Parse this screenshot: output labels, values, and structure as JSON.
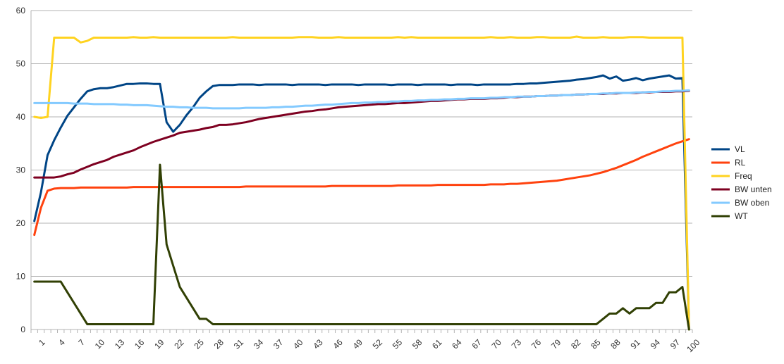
{
  "chart_data": {
    "type": "line",
    "title": "",
    "xlabel": "",
    "ylabel": "",
    "ylim": [
      0,
      60
    ],
    "yticks": [
      0,
      10,
      20,
      30,
      40,
      50,
      60
    ],
    "x": [
      1,
      2,
      3,
      4,
      5,
      6,
      7,
      8,
      9,
      10,
      11,
      12,
      13,
      14,
      15,
      16,
      17,
      18,
      19,
      20,
      21,
      22,
      23,
      24,
      25,
      26,
      27,
      28,
      29,
      30,
      31,
      32,
      33,
      34,
      35,
      36,
      37,
      38,
      39,
      40,
      41,
      42,
      43,
      44,
      45,
      46,
      47,
      48,
      49,
      50,
      51,
      52,
      53,
      54,
      55,
      56,
      57,
      58,
      59,
      60,
      61,
      62,
      63,
      64,
      65,
      66,
      67,
      68,
      69,
      70,
      71,
      72,
      73,
      74,
      75,
      76,
      77,
      78,
      79,
      80,
      81,
      82,
      83,
      84,
      85,
      86,
      87,
      88,
      89,
      90,
      91,
      92,
      93,
      94,
      95,
      96,
      97,
      98,
      99,
      100
    ],
    "xtick_labels": [
      "1",
      "4",
      "7",
      "10",
      "13",
      "16",
      "19",
      "22",
      "25",
      "28",
      "31",
      "34",
      "37",
      "40",
      "43",
      "46",
      "49",
      "52",
      "55",
      "58",
      "61",
      "64",
      "67",
      "70",
      "73",
      "76",
      "79",
      "82",
      "85",
      "88",
      "91",
      "94",
      "97",
      "100"
    ],
    "grid": true,
    "legend_position": "right",
    "series": [
      {
        "name": "VL",
        "color": "#004586",
        "values": [
          20.4,
          25.8,
          32.8,
          35.6,
          38.0,
          40.2,
          41.8,
          43.4,
          44.8,
          45.2,
          45.4,
          45.4,
          45.6,
          45.9,
          46.2,
          46.2,
          46.3,
          46.3,
          46.2,
          46.2,
          39.0,
          37.2,
          38.5,
          40.3,
          41.8,
          43.6,
          44.8,
          45.8,
          46.0,
          46.0,
          46.0,
          46.1,
          46.1,
          46.1,
          46.0,
          46.1,
          46.1,
          46.1,
          46.1,
          46.0,
          46.1,
          46.1,
          46.1,
          46.1,
          46.0,
          46.1,
          46.1,
          46.1,
          46.1,
          46.0,
          46.1,
          46.1,
          46.1,
          46.1,
          46.0,
          46.1,
          46.1,
          46.1,
          46.0,
          46.1,
          46.1,
          46.1,
          46.1,
          46.0,
          46.1,
          46.1,
          46.1,
          46.0,
          46.1,
          46.1,
          46.1,
          46.1,
          46.1,
          46.2,
          46.2,
          46.3,
          46.3,
          46.4,
          46.5,
          46.6,
          46.7,
          46.8,
          47.0,
          47.1,
          47.3,
          47.5,
          47.8,
          47.2,
          47.6,
          46.8,
          47.0,
          47.3,
          46.9,
          47.2,
          47.4,
          47.6,
          47.8,
          47.2,
          47.3,
          0
        ]
      },
      {
        "name": "RL",
        "color": "#ff420e",
        "values": [
          17.8,
          22.9,
          26.1,
          26.5,
          26.6,
          26.6,
          26.6,
          26.7,
          26.7,
          26.7,
          26.7,
          26.7,
          26.7,
          26.7,
          26.7,
          26.8,
          26.8,
          26.8,
          26.8,
          26.8,
          26.8,
          26.8,
          26.8,
          26.8,
          26.8,
          26.8,
          26.8,
          26.8,
          26.8,
          26.8,
          26.8,
          26.8,
          26.9,
          26.9,
          26.9,
          26.9,
          26.9,
          26.9,
          26.9,
          26.9,
          26.9,
          26.9,
          26.9,
          26.9,
          26.9,
          27.0,
          27.0,
          27.0,
          27.0,
          27.0,
          27.0,
          27.0,
          27.0,
          27.0,
          27.0,
          27.1,
          27.1,
          27.1,
          27.1,
          27.1,
          27.1,
          27.2,
          27.2,
          27.2,
          27.2,
          27.2,
          27.2,
          27.2,
          27.2,
          27.3,
          27.3,
          27.3,
          27.4,
          27.4,
          27.5,
          27.6,
          27.7,
          27.8,
          27.9,
          28.0,
          28.2,
          28.4,
          28.6,
          28.8,
          29.0,
          29.3,
          29.6,
          30.0,
          30.4,
          30.9,
          31.4,
          31.9,
          32.5,
          33.0,
          33.5,
          34.0,
          34.5,
          35.0,
          35.4,
          35.8
        ]
      },
      {
        "name": "Freq",
        "color": "#ffd320",
        "values": [
          40.0,
          39.8,
          40.0,
          54.9,
          54.9,
          54.9,
          54.9,
          54.0,
          54.3,
          54.9,
          54.9,
          54.9,
          54.9,
          54.9,
          54.9,
          55.0,
          54.9,
          54.9,
          55.0,
          54.9,
          54.9,
          54.9,
          54.9,
          54.9,
          54.9,
          54.9,
          54.9,
          54.9,
          54.9,
          54.9,
          55.0,
          54.9,
          54.9,
          54.9,
          54.9,
          54.9,
          54.9,
          54.9,
          54.9,
          54.9,
          55.0,
          55.0,
          55.0,
          54.9,
          54.9,
          54.9,
          55.0,
          54.9,
          54.9,
          54.9,
          54.9,
          54.9,
          54.9,
          54.9,
          54.9,
          55.0,
          54.9,
          55.0,
          54.9,
          54.9,
          54.9,
          54.9,
          54.9,
          54.9,
          54.9,
          54.9,
          54.9,
          54.9,
          54.9,
          55.0,
          54.9,
          54.9,
          55.0,
          54.9,
          54.9,
          54.9,
          55.0,
          55.0,
          54.9,
          54.9,
          54.9,
          54.9,
          55.1,
          54.9,
          54.9,
          54.9,
          55.0,
          54.9,
          54.9,
          54.9,
          55.0,
          55.0,
          55.0,
          54.9,
          54.9,
          54.9,
          54.9,
          54.9,
          54.9,
          0
        ]
      },
      {
        "name": "BW unten",
        "color": "#7e0021",
        "values": [
          28.6,
          28.6,
          28.6,
          28.6,
          28.8,
          29.2,
          29.5,
          30.1,
          30.6,
          31.1,
          31.5,
          31.9,
          32.5,
          32.9,
          33.3,
          33.7,
          34.3,
          34.8,
          35.3,
          35.7,
          36.1,
          36.5,
          37.0,
          37.2,
          37.4,
          37.6,
          37.9,
          38.1,
          38.5,
          38.5,
          38.6,
          38.8,
          39.0,
          39.3,
          39.6,
          39.8,
          40.0,
          40.2,
          40.4,
          40.6,
          40.8,
          41.0,
          41.1,
          41.3,
          41.4,
          41.6,
          41.8,
          41.9,
          42.0,
          42.1,
          42.2,
          42.3,
          42.4,
          42.4,
          42.5,
          42.6,
          42.6,
          42.7,
          42.8,
          42.9,
          43.0,
          43.0,
          43.1,
          43.2,
          43.3,
          43.3,
          43.4,
          43.4,
          43.4,
          43.5,
          43.5,
          43.6,
          43.7,
          43.7,
          43.8,
          43.8,
          43.9,
          43.9,
          44.0,
          44.0,
          44.1,
          44.1,
          44.2,
          44.2,
          44.3,
          44.3,
          44.3,
          44.4,
          44.4,
          44.5,
          44.5,
          44.5,
          44.6,
          44.6,
          44.7,
          44.7,
          44.7,
          44.8,
          44.8,
          44.9
        ]
      },
      {
        "name": "BW oben",
        "color": "#83caff",
        "values": [
          42.6,
          42.6,
          42.6,
          42.6,
          42.6,
          42.6,
          42.5,
          42.5,
          42.5,
          42.4,
          42.4,
          42.4,
          42.4,
          42.3,
          42.3,
          42.2,
          42.2,
          42.2,
          42.1,
          42.0,
          41.9,
          41.9,
          41.8,
          41.8,
          41.7,
          41.7,
          41.7,
          41.6,
          41.6,
          41.6,
          41.6,
          41.6,
          41.7,
          41.7,
          41.7,
          41.7,
          41.8,
          41.8,
          41.9,
          41.9,
          42.0,
          42.1,
          42.1,
          42.2,
          42.3,
          42.3,
          42.4,
          42.5,
          42.6,
          42.6,
          42.7,
          42.7,
          42.8,
          42.8,
          42.9,
          42.9,
          43.0,
          43.0,
          43.1,
          43.1,
          43.2,
          43.2,
          43.3,
          43.3,
          43.4,
          43.4,
          43.5,
          43.5,
          43.5,
          43.6,
          43.6,
          43.7,
          43.7,
          43.8,
          43.8,
          43.8,
          43.9,
          43.9,
          44.0,
          44.0,
          44.1,
          44.1,
          44.2,
          44.2,
          44.3,
          44.3,
          44.4,
          44.4,
          44.5,
          44.5,
          44.5,
          44.6,
          44.6,
          44.7,
          44.7,
          44.8,
          44.8,
          44.9,
          44.9,
          45.0
        ]
      },
      {
        "name": "WT",
        "color": "#314004",
        "values": [
          9,
          9,
          9,
          9,
          9,
          7,
          5,
          3,
          1,
          1,
          1,
          1,
          1,
          1,
          1,
          1,
          1,
          1,
          1,
          31,
          16,
          12,
          8,
          6,
          4,
          2,
          2,
          1,
          1,
          1,
          1,
          1,
          1,
          1,
          1,
          1,
          1,
          1,
          1,
          1,
          1,
          1,
          1,
          1,
          1,
          1,
          1,
          1,
          1,
          1,
          1,
          1,
          1,
          1,
          1,
          1,
          1,
          1,
          1,
          1,
          1,
          1,
          1,
          1,
          1,
          1,
          1,
          1,
          1,
          1,
          1,
          1,
          1,
          1,
          1,
          1,
          1,
          1,
          1,
          1,
          1,
          1,
          1,
          1,
          1,
          1,
          2,
          3,
          3,
          4,
          3,
          4,
          4,
          4,
          5,
          5,
          7,
          7,
          8,
          0
        ]
      }
    ]
  }
}
